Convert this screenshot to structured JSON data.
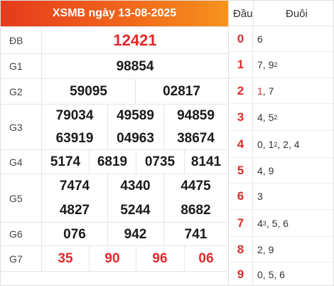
{
  "header": {
    "title": "XSMB ngày 13-08-2025"
  },
  "results": {
    "db": {
      "label": "ĐB",
      "numbers": [
        "12421"
      ]
    },
    "g1": {
      "label": "G1",
      "numbers": [
        "98854"
      ]
    },
    "g2": {
      "label": "G2",
      "numbers": [
        "59095",
        "02817"
      ]
    },
    "g3": {
      "label": "G3",
      "numbers": [
        "79034",
        "49589",
        "94859",
        "63919",
        "04963",
        "38674"
      ]
    },
    "g4": {
      "label": "G4",
      "numbers": [
        "5174",
        "6819",
        "0735",
        "8141"
      ]
    },
    "g5": {
      "label": "G5",
      "numbers": [
        "7474",
        "4340",
        "4475",
        "4827",
        "5244",
        "8682"
      ]
    },
    "g6": {
      "label": "G6",
      "numbers": [
        "076",
        "942",
        "741"
      ]
    },
    "g7": {
      "label": "G7",
      "numbers": [
        "35",
        "90",
        "96",
        "06"
      ]
    }
  },
  "loto": {
    "head_label": "Đầu",
    "tail_label": "Đuôi",
    "rows": [
      {
        "head": "0",
        "tail": "6"
      },
      {
        "head": "1",
        "tail": "7, 9",
        "sup": "2"
      },
      {
        "head": "2",
        "tail_red": "1",
        "tail": ", 7"
      },
      {
        "head": "3",
        "tail": "4, 5",
        "sup": "2"
      },
      {
        "head": "4",
        "tail": "0, 1",
        "sup": "2",
        "tail_after": ", 2, 4"
      },
      {
        "head": "5",
        "tail": "4, 9"
      },
      {
        "head": "6",
        "tail": "3"
      },
      {
        "head": "7",
        "tail": "4",
        "sup": "3",
        "tail_after": ", 5, 6"
      },
      {
        "head": "8",
        "tail": "2, 9"
      },
      {
        "head": "9",
        "tail": "0, 5, 6"
      }
    ]
  },
  "colors": {
    "header_start": "#e53a1d",
    "header_end": "#f7931e",
    "accent_red": "#e02a2a"
  }
}
